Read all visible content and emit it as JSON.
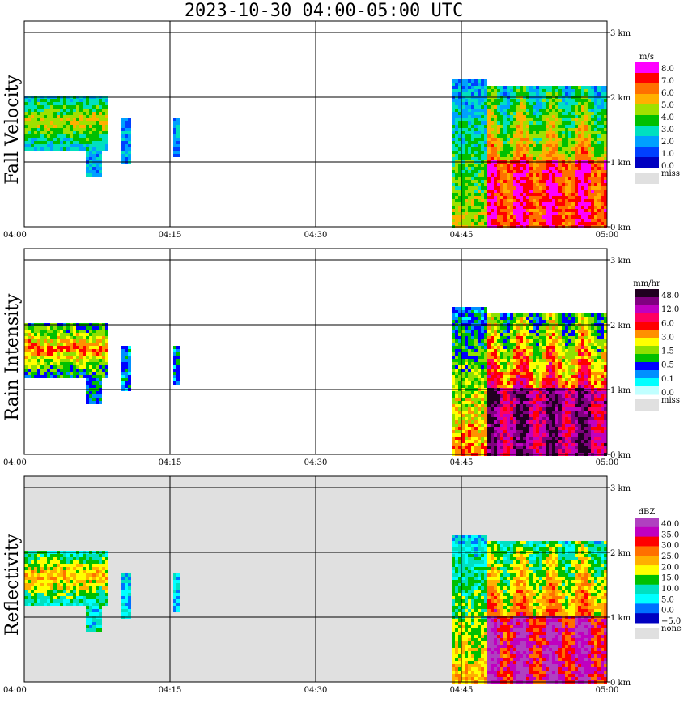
{
  "title": "2023-10-30   04:00-05:00 UTC",
  "chart_data": [
    {
      "type": "heatmap",
      "ylabel": "Fall Velocity",
      "x_ticks": [
        "04:00",
        "04:15",
        "04:30",
        "04:45",
        "05:00"
      ],
      "y_ticks": [
        "0 km",
        "1 km",
        "2 km",
        "3 km"
      ],
      "xlim": [
        "04:00",
        "05:00"
      ],
      "ylim_km": [
        0,
        3
      ],
      "grid": true,
      "background": "#ffffff",
      "colorbar": {
        "unit": "m/s",
        "labels": [
          "8.0",
          "7.0",
          "6.0",
          "5.0",
          "4.0",
          "3.0",
          "2.0",
          "1.0",
          "0.0"
        ],
        "colors": [
          "#ff00ff",
          "#ff0000",
          "#ff7000",
          "#ffb000",
          "#a0e000",
          "#00c000",
          "#00e0c0",
          "#00a0ff",
          "#0040ff",
          "#0000c0"
        ],
        "missing_label": "miss",
        "missing_color": "#e0e0e0"
      }
    },
    {
      "type": "heatmap",
      "ylabel": "Rain Intensity",
      "x_ticks": [
        "04:00",
        "04:15",
        "04:30",
        "04:45",
        "05:00"
      ],
      "y_ticks": [
        "0 km",
        "1 km",
        "2 km",
        "3 km"
      ],
      "xlim": [
        "04:00",
        "05:00"
      ],
      "ylim_km": [
        0,
        3
      ],
      "grid": true,
      "background": "#ffffff",
      "colorbar": {
        "unit": "mm/hr",
        "labels": [
          "48.0",
          "12.0",
          "6.0",
          "3.0",
          "1.5",
          "0.5",
          "0.1",
          "0.0"
        ],
        "colors": [
          "#200020",
          "#800080",
          "#c000c0",
          "#ff0060",
          "#ff0000",
          "#ff9000",
          "#ffff00",
          "#90e000",
          "#00c000",
          "#0000ff",
          "#0090ff",
          "#00ffff",
          "#c0ffff"
        ],
        "missing_label": "miss",
        "missing_color": "#e0e0e0"
      }
    },
    {
      "type": "heatmap",
      "ylabel": "Reflectivity",
      "x_ticks": [
        "04:00",
        "04:15",
        "04:30",
        "04:45",
        "05:00"
      ],
      "y_ticks": [
        "0 km",
        "1 km",
        "2 km",
        "3 km"
      ],
      "xlim": [
        "04:00",
        "05:00"
      ],
      "ylim_km": [
        0,
        3
      ],
      "grid": true,
      "background": "#e0e0e0",
      "colorbar": {
        "unit": "dBZ",
        "labels": [
          "40.0",
          "35.0",
          "30.0",
          "25.0",
          "20.0",
          "15.0",
          "10.0",
          "5.0",
          "0.0",
          "−5.0"
        ],
        "colors": [
          "#b040c0",
          "#c000c0",
          "#ff0000",
          "#ff7000",
          "#ffb000",
          "#ffff00",
          "#00c000",
          "#00e0c0",
          "#00ffff",
          "#0070ff",
          "#0000c0"
        ],
        "missing_label": "none",
        "missing_color": "#e0e0e0"
      }
    }
  ]
}
